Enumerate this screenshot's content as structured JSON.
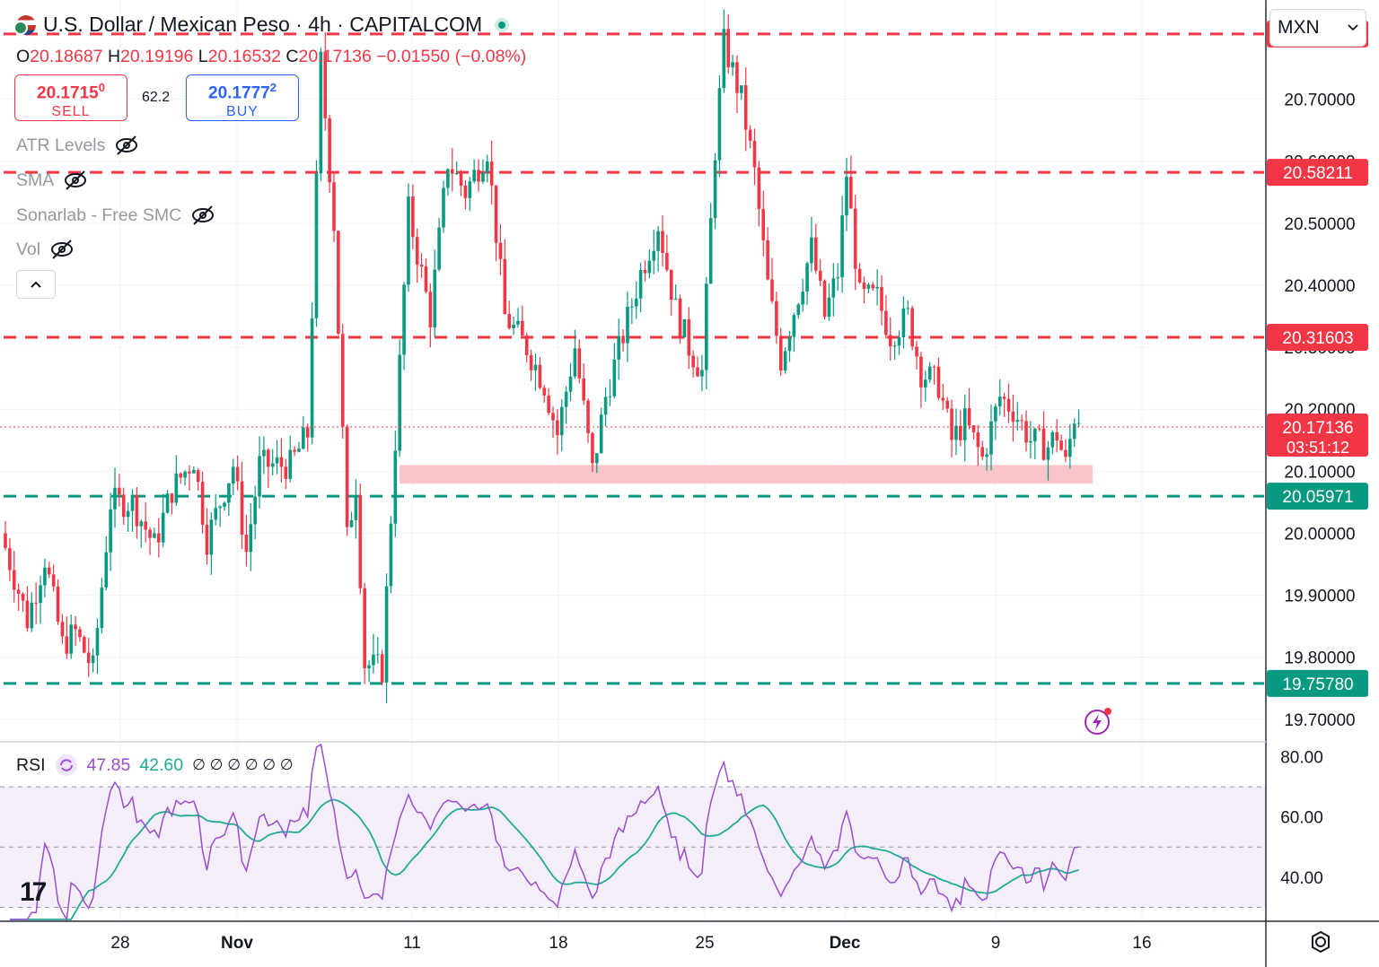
{
  "header": {
    "title": "U.S. Dollar / Mexican Peso · 4h · CAPITALCOM",
    "ohlc": [
      {
        "label": "O",
        "value": "20.18687"
      },
      {
        "label": "H",
        "value": "20.19196"
      },
      {
        "label": "L",
        "value": "20.16532"
      },
      {
        "label": "C",
        "value": "20.17136"
      },
      {
        "label": "",
        "value": "−0.01550 (−0.08%)"
      }
    ]
  },
  "trade": {
    "sell_price": "20.1715",
    "sell_sup": "0",
    "sell_label": "SELL",
    "spread": "62.2",
    "buy_price": "20.1777",
    "buy_sup": "2",
    "buy_label": "BUY"
  },
  "indicators": [
    "ATR Levels",
    "SMA",
    "Sonarlab - Free SMC",
    "Vol"
  ],
  "currency": "MXN",
  "icons": {
    "flag": "usd-mxn-flag-icon",
    "eye_off": "eye-off-icon",
    "collapse": "chevron-up-icon",
    "dropdown": "chevron-down-icon",
    "settings": "settings-gear-icon",
    "alert": "lightning-icon",
    "logo": "tradingview-logo"
  },
  "colors": {
    "up": "#089981",
    "down": "#f23645",
    "rsi": "#9c4dcc",
    "rsi_ma": "#22ab94",
    "support_zone": "#f9c5c9"
  },
  "rsi": {
    "label": "RSI",
    "value": "47.85",
    "ma_value": "42.60",
    "extra": "∅ ∅ ∅ ∅ ∅ ∅",
    "y_ticks": [
      "80.00",
      "60.00",
      "40.00"
    ]
  },
  "chart_data": {
    "type": "candlestick",
    "title": "U.S. Dollar / Mexican Peso · 4h · CAPITALCOM",
    "x_ticks": [
      "28",
      "Nov",
      "11",
      "18",
      "25",
      "Dec",
      "9",
      "16"
    ],
    "y_ticks": [
      "20.70000",
      "20.60000",
      "20.50000",
      "20.40000",
      "20.30000",
      "20.20000",
      "20.10000",
      "20.00000",
      "19.90000",
      "19.80000",
      "19.70000"
    ],
    "ylim": [
      19.665,
      20.86
    ],
    "last_price": "20.17136",
    "countdown": "03:51:12",
    "levels": [
      {
        "value": 20.80516,
        "label": "20.80516",
        "kind": "resistance"
      },
      {
        "value": 20.58211,
        "label": "20.58211",
        "kind": "resistance"
      },
      {
        "value": 20.31603,
        "label": "20.31603",
        "kind": "resistance"
      },
      {
        "value": 20.05971,
        "label": "20.05971",
        "kind": "support"
      },
      {
        "value": 19.7578,
        "label": "19.75780",
        "kind": "support"
      }
    ],
    "support_zone": [
      20.08,
      20.11
    ],
    "path_points": [
      [
        0,
        20.0
      ],
      [
        6,
        19.86
      ],
      [
        10,
        19.96
      ],
      [
        14,
        19.82
      ],
      [
        17,
        19.84
      ],
      [
        21,
        19.78
      ],
      [
        25,
        20.05
      ],
      [
        30,
        20.05
      ],
      [
        35,
        19.98
      ],
      [
        39,
        20.07
      ],
      [
        44,
        20.12
      ],
      [
        47,
        19.99
      ],
      [
        53,
        20.11
      ],
      [
        56,
        19.97
      ],
      [
        59,
        20.11
      ],
      [
        63,
        20.11
      ],
      [
        66,
        20.11
      ],
      [
        70,
        20.16
      ],
      [
        73,
        20.76
      ],
      [
        76,
        20.5
      ],
      [
        79,
        19.99
      ],
      [
        81,
        20.08
      ],
      [
        83,
        19.79
      ],
      [
        87,
        19.78
      ],
      [
        90,
        20.15
      ],
      [
        93,
        20.52
      ],
      [
        98,
        20.35
      ],
      [
        102,
        20.6
      ],
      [
        106,
        20.55
      ],
      [
        111,
        20.62
      ],
      [
        115,
        20.35
      ],
      [
        120,
        20.3
      ],
      [
        124,
        20.24
      ],
      [
        127,
        20.16
      ],
      [
        131,
        20.3
      ],
      [
        135,
        20.1
      ],
      [
        138,
        20.22
      ],
      [
        142,
        20.32
      ],
      [
        146,
        20.42
      ],
      [
        150,
        20.5
      ],
      [
        154,
        20.36
      ],
      [
        157,
        20.3
      ],
      [
        160,
        20.26
      ],
      [
        163,
        20.62
      ],
      [
        165,
        20.79
      ],
      [
        169,
        20.7
      ],
      [
        172,
        20.58
      ],
      [
        175,
        20.4
      ],
      [
        178,
        20.28
      ],
      [
        181,
        20.36
      ],
      [
        185,
        20.46
      ],
      [
        188,
        20.35
      ],
      [
        191,
        20.42
      ],
      [
        193,
        20.58
      ],
      [
        196,
        20.38
      ],
      [
        200,
        20.38
      ],
      [
        203,
        20.32
      ],
      [
        207,
        20.35
      ],
      [
        210,
        20.26
      ],
      [
        214,
        20.24
      ],
      [
        217,
        20.15
      ],
      [
        220,
        20.18
      ],
      [
        224,
        20.12
      ],
      [
        228,
        20.22
      ],
      [
        231,
        20.2
      ],
      [
        235,
        20.15
      ],
      [
        239,
        20.14
      ],
      [
        241,
        20.16
      ],
      [
        243,
        20.11
      ],
      [
        245,
        20.19
      ]
    ]
  }
}
